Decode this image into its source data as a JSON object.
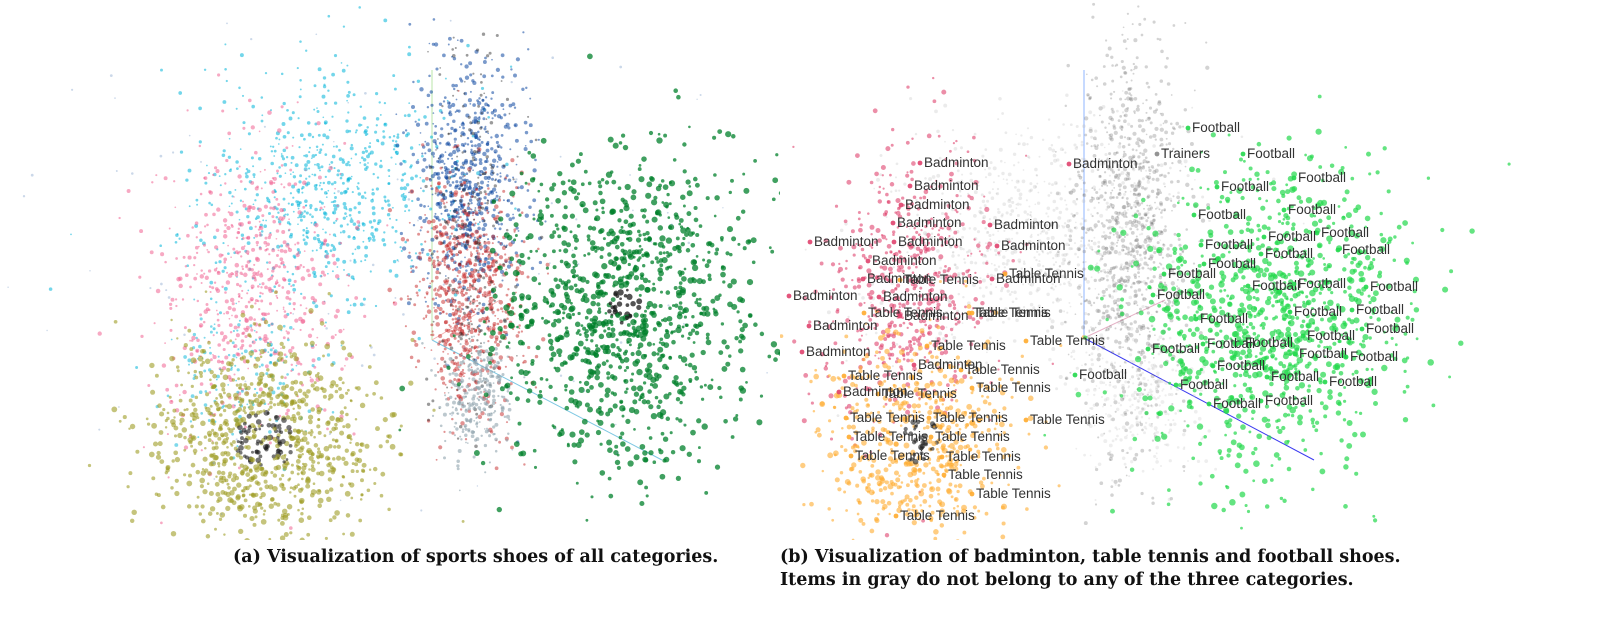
{
  "captions": {
    "a": "(a) Visualization of sports shoes of all categories.",
    "b": "(b) Visualization of badminton, table tennis and football shoes. Items in gray do not belong to any of the three categories."
  },
  "chart_data": [
    {
      "type": "scatter",
      "title": "",
      "projection": "3d",
      "grid": false,
      "legend": "none",
      "clusters": [
        {
          "color": "#00b4d8"
        },
        {
          "color": "#f06292"
        },
        {
          "color": "#9e9d24"
        },
        {
          "color": "#0d47a1"
        },
        {
          "color": "#c62828"
        },
        {
          "color": "#90a4ae"
        },
        {
          "color": "#00802b"
        }
      ]
    },
    {
      "type": "scatter",
      "title": "",
      "projection": "3d",
      "grid": false,
      "legend": "none",
      "clusters": [
        {
          "category": "Badminton",
          "color": "#e0426e"
        },
        {
          "category": "Table Tennis",
          "color": "#ffab2e"
        },
        {
          "category": "Football",
          "color": "#22d84c"
        },
        {
          "category": "Other",
          "color": "#9e9e9e"
        }
      ],
      "point_labels": [
        "Football",
        "Trainers",
        "Football",
        "Football",
        "Badminton",
        "Badminton",
        "Badminton",
        "Football",
        "Football",
        "Badminton",
        "Badminton",
        "Football",
        "Badminton",
        "Badminton",
        "Badminton",
        "Football",
        "Football",
        "Badminton",
        "Football",
        "Football",
        "Football",
        "Badminton",
        "Table Tennis",
        "Table Tennis",
        "Badminton",
        "Football",
        "Football",
        "Badminton",
        "Football",
        "Football",
        "Badminton",
        "Football",
        "Table Tennis",
        "Badminton",
        "Table Tennis",
        "Table Tennis",
        "Football",
        "Football",
        "Badminton",
        "Football",
        "Badminton",
        "Table Tennis",
        "Table Tennis",
        "Football",
        "Football",
        "Football",
        "Football",
        "Football",
        "Badminton",
        "Table Tennis",
        "Football",
        "Football",
        "Football",
        "Football",
        "Table Tennis",
        "Table Tennis",
        "Badminton",
        "Table Tennis",
        "Badminton",
        "Football",
        "Football",
        "Table Tennis",
        "Table Tennis",
        "Football",
        "Football",
        "Table Tennis",
        "Table Tennis",
        "Table Tennis",
        "Football",
        "Table Tennis",
        "Table Tennis",
        "Table Tennis",
        "Football",
        "Table Tennis",
        "Table Tennis"
      ]
    }
  ]
}
